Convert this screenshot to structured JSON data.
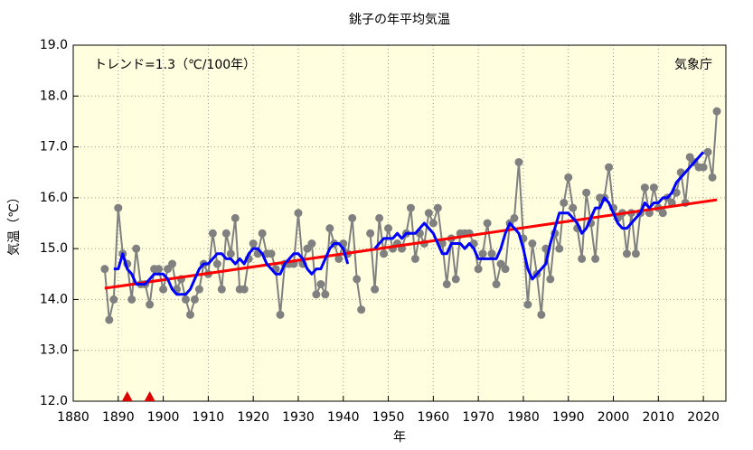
{
  "chart_data": {
    "type": "line",
    "title": "銚子の年平均気温",
    "ylabel": "気温（℃）",
    "xlabel": "年",
    "annotation": "トレンド=1.3（℃/100年）",
    "source": "気象庁",
    "xlim": [
      1880,
      2025
    ],
    "ylim": [
      12,
      19
    ],
    "xticks": [
      1880,
      1890,
      1900,
      1910,
      1920,
      1930,
      1940,
      1950,
      1960,
      1970,
      1980,
      1990,
      2000,
      2010,
      2020
    ],
    "yticks": [
      {
        "value": 12,
        "label": "12.0"
      },
      {
        "value": 13,
        "label": "13.0"
      },
      {
        "value": 14,
        "label": "14.0"
      },
      {
        "value": 15,
        "label": "15.0"
      },
      {
        "value": 16,
        "label": "16.0"
      },
      {
        "value": 17,
        "label": "17.0"
      },
      {
        "value": 18,
        "label": "18.0"
      },
      {
        "value": 19,
        "label": "19.0"
      }
    ],
    "grid": true,
    "background": "#ffffe0",
    "x": [
      1887,
      1888,
      1889,
      1890,
      1891,
      1892,
      1893,
      1894,
      1895,
      1896,
      1897,
      1898,
      1899,
      1900,
      1901,
      1902,
      1903,
      1904,
      1905,
      1906,
      1907,
      1908,
      1909,
      1910,
      1911,
      1912,
      1913,
      1914,
      1915,
      1916,
      1917,
      1918,
      1919,
      1920,
      1921,
      1922,
      1923,
      1924,
      1925,
      1926,
      1927,
      1928,
      1929,
      1930,
      1931,
      1932,
      1933,
      1934,
      1935,
      1936,
      1937,
      1938,
      1939,
      1940,
      1941,
      1942,
      1943,
      1944,
      1945,
      1946,
      1947,
      1948,
      1949,
      1950,
      1951,
      1952,
      1953,
      1954,
      1955,
      1956,
      1957,
      1958,
      1959,
      1960,
      1961,
      1962,
      1963,
      1964,
      1965,
      1966,
      1967,
      1968,
      1969,
      1970,
      1971,
      1972,
      1973,
      1974,
      1975,
      1976,
      1977,
      1978,
      1979,
      1980,
      1981,
      1982,
      1983,
      1984,
      1985,
      1986,
      1987,
      1988,
      1989,
      1990,
      1991,
      1992,
      1993,
      1994,
      1995,
      1996,
      1997,
      1998,
      1999,
      2000,
      2001,
      2002,
      2003,
      2004,
      2005,
      2006,
      2007,
      2008,
      2009,
      2010,
      2011,
      2012,
      2013,
      2014,
      2015,
      2016,
      2017,
      2018,
      2019,
      2020,
      2021,
      2022,
      2023
    ],
    "series": [
      {
        "color": "#808080",
        "markers": true,
        "width": 2,
        "values": [
          14.6,
          13.6,
          14.0,
          15.8,
          14.9,
          14.7,
          14.0,
          15.0,
          14.3,
          14.3,
          13.9,
          14.6,
          14.6,
          14.2,
          14.6,
          14.7,
          14.2,
          14.4,
          14.0,
          13.7,
          14.0,
          14.2,
          14.7,
          14.5,
          15.3,
          14.7,
          14.2,
          15.3,
          14.9,
          15.6,
          14.2,
          14.2,
          14.8,
          15.1,
          14.9,
          15.3,
          14.9,
          14.9,
          14.6,
          13.7,
          14.7,
          14.7,
          14.7,
          15.7,
          14.7,
          15.0,
          15.1,
          14.1,
          14.3,
          14.1,
          15.4,
          15.1,
          14.8,
          15.1,
          14.9,
          15.6,
          14.4,
          13.8,
          null,
          15.3,
          14.2,
          15.6,
          14.9,
          15.4,
          15.0,
          15.1,
          15.0,
          15.3,
          15.8,
          14.8,
          15.3,
          15.1,
          15.7,
          15.5,
          15.8,
          15.1,
          14.3,
          15.2,
          14.4,
          15.3,
          15.3,
          15.3,
          15.1,
          14.6,
          14.9,
          15.5,
          14.9,
          14.3,
          14.7,
          14.6,
          15.5,
          15.6,
          16.7,
          15.2,
          13.9,
          15.1,
          14.5,
          13.7,
          15.0,
          14.4,
          15.3,
          15.0,
          15.9,
          16.4,
          15.8,
          15.4,
          14.8,
          16.1,
          15.5,
          14.8,
          16.0,
          16.0,
          16.6,
          15.8,
          15.6,
          15.7,
          14.9,
          15.7,
          14.9,
          15.7,
          16.2,
          15.7,
          16.2,
          15.8,
          15.7,
          16.0,
          15.9,
          16.1,
          16.5,
          15.9,
          16.8,
          16.7,
          16.6,
          16.6,
          16.9,
          16.4,
          17.7
        ]
      },
      {
        "color": "#0000ff",
        "markers": false,
        "width": 3,
        "values": [
          null,
          null,
          14.6,
          14.6,
          14.9,
          14.6,
          14.5,
          14.3,
          14.3,
          14.3,
          14.4,
          14.5,
          14.5,
          14.5,
          14.4,
          14.2,
          14.1,
          14.1,
          14.1,
          14.2,
          14.4,
          14.6,
          14.7,
          14.7,
          14.8,
          14.9,
          14.9,
          14.8,
          14.8,
          14.7,
          14.8,
          14.7,
          14.9,
          15.0,
          15.0,
          14.9,
          14.7,
          14.6,
          14.5,
          14.5,
          14.7,
          14.8,
          14.9,
          14.9,
          14.8,
          14.6,
          14.5,
          14.6,
          14.6,
          14.8,
          15.0,
          15.1,
          15.1,
          15.0,
          14.7,
          null,
          null,
          null,
          null,
          null,
          15.0,
          15.1,
          15.2,
          15.2,
          15.2,
          15.3,
          15.2,
          15.3,
          15.3,
          15.3,
          15.4,
          15.5,
          15.4,
          15.3,
          15.1,
          14.9,
          14.9,
          15.1,
          15.1,
          15.1,
          15.0,
          15.1,
          15.0,
          14.8,
          14.8,
          14.8,
          14.8,
          14.8,
          15.0,
          15.3,
          15.5,
          15.4,
          15.3,
          15.0,
          14.6,
          14.4,
          14.5,
          14.6,
          14.7,
          15.1,
          15.4,
          15.7,
          15.7,
          15.7,
          15.6,
          15.5,
          15.3,
          15.4,
          15.6,
          15.8,
          15.8,
          16.0,
          15.9,
          15.7,
          15.5,
          15.4,
          15.4,
          15.5,
          15.6,
          15.7,
          15.9,
          15.8,
          15.9,
          15.9,
          16.0,
          16.0,
          16.1,
          16.3,
          16.4,
          16.5,
          16.6,
          16.7,
          16.8,
          16.9,
          null,
          null,
          null
        ]
      }
    ],
    "trend": {
      "color": "#ff0000",
      "x": [
        1887,
        2023
      ],
      "values": [
        14.22,
        15.96
      ]
    },
    "event_markers": {
      "color": "#dd0000",
      "x": [
        1892,
        1897
      ]
    }
  }
}
